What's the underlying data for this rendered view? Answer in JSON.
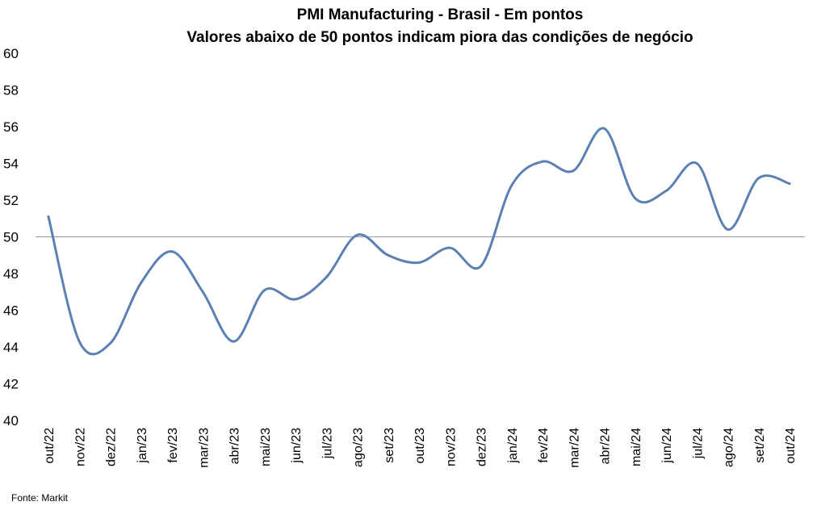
{
  "chart_data": {
    "type": "line",
    "title": "PMI Manufacturing - Brasil - Em pontos",
    "subtitle": "Valores abaixo de 50 pontos indicam piora das condições de negócio",
    "xlabel": "",
    "ylabel": "",
    "categories": [
      "out/22",
      "nov/22",
      "dez/22",
      "jan/23",
      "fev/23",
      "mar/23",
      "abr/23",
      "mai/23",
      "jun/23",
      "jul/23",
      "ago/23",
      "set/23",
      "out/23",
      "nov/23",
      "dez/23",
      "jan/24",
      "fev/24",
      "mar/24",
      "abr/24",
      "mai/24",
      "jun/24",
      "jul/24",
      "ago/24",
      "set/24",
      "out/24"
    ],
    "series": [
      {
        "name": "",
        "values": [
          51.1,
          44.3,
          44.2,
          47.5,
          49.2,
          47.0,
          44.3,
          47.1,
          46.6,
          47.8,
          50.1,
          49.0,
          48.6,
          49.4,
          48.4,
          52.8,
          54.1,
          53.6,
          55.9,
          52.1,
          52.5,
          54.0,
          50.4,
          53.2,
          52.9
        ]
      }
    ],
    "ylim": [
      40,
      60
    ],
    "yticks": [
      40,
      42,
      44,
      46,
      48,
      50,
      52,
      54,
      56,
      58,
      60
    ],
    "reference_line": 50,
    "grid": false,
    "legend": "none",
    "line_color": "#5b80b2",
    "reference_color": "#9a9a9a",
    "source": "Fonte: Markit"
  }
}
